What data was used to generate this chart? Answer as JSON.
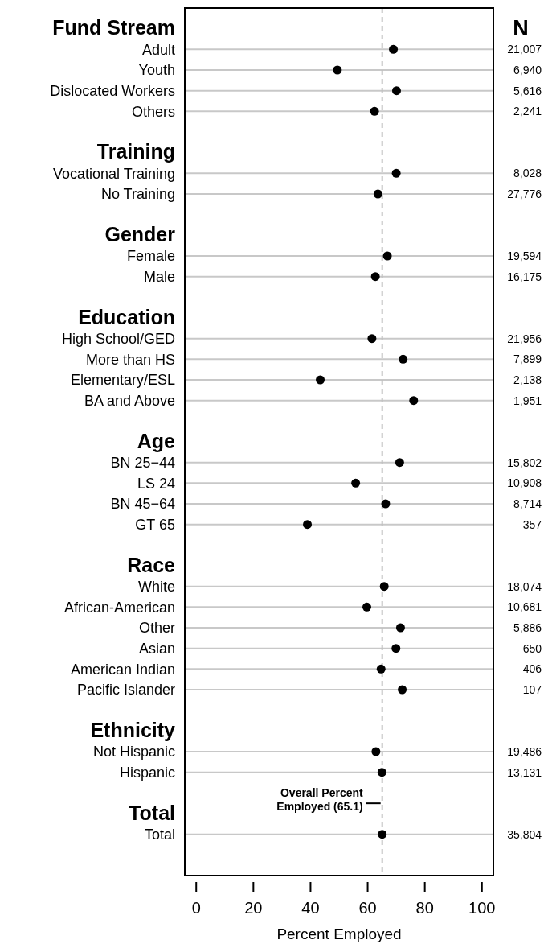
{
  "chart_data": {
    "type": "scatter",
    "orientation": "horizontal",
    "xlabel": "Percent Employed",
    "y2label": "N",
    "categories": [
      "Fund Stream",
      "Adult",
      "Youth",
      "Dislocated Workers",
      "Others",
      null,
      "Training",
      "Vocational Training",
      "No Training",
      null,
      "Gender",
      "Female",
      "Male",
      null,
      "Education",
      "High School/GED",
      "More than HS",
      "Elementary/ESL",
      "BA and Above",
      null,
      "Age",
      "BN 25−44",
      "LS 24",
      "BN 45−64",
      "GT 65",
      null,
      "Race",
      "White",
      "African-American",
      "Other",
      "Asian",
      "American Indian",
      "Pacific Islander",
      null,
      "Ethnicity",
      "Not Hispanic",
      "Hispanic",
      null,
      "Total",
      "Total"
    ],
    "series": [
      {
        "color": "#000000",
        "values": [
          null,
          69.0,
          49.4,
          70.1,
          62.4,
          null,
          null,
          70.0,
          63.6,
          null,
          null,
          66.9,
          62.7,
          null,
          null,
          61.5,
          72.4,
          43.4,
          76.1,
          null,
          null,
          71.2,
          55.8,
          66.3,
          38.9,
          null,
          null,
          65.8,
          59.7,
          71.5,
          69.9,
          64.7,
          72.1,
          null,
          null,
          62.9,
          65.0,
          null,
          null,
          65.1
        ]
      }
    ],
    "xlim": [
      -4,
      104
    ],
    "xticks": [
      0,
      20,
      40,
      60,
      80,
      100
    ],
    "grid": "y",
    "marker": "circle",
    "ref_lines": [
      {
        "axis": "x",
        "value": 65.1,
        "label": "Overall Percent\nEmployed (65.1)",
        "color": "#c0c0c0",
        "line_style": "dashed"
      }
    ],
    "annotations": [
      "21,007",
      "6,940",
      "5,616",
      "2,241",
      "8,028",
      "27,776",
      "19,594",
      "16,175",
      "21,956",
      "7,899",
      "2,138",
      "1,951",
      "15,802",
      "10,908",
      "8,714",
      "357",
      "18,074",
      "10,681",
      "5,886",
      "650",
      "406",
      "107",
      "19,486",
      "13,131",
      "35,804"
    ]
  }
}
